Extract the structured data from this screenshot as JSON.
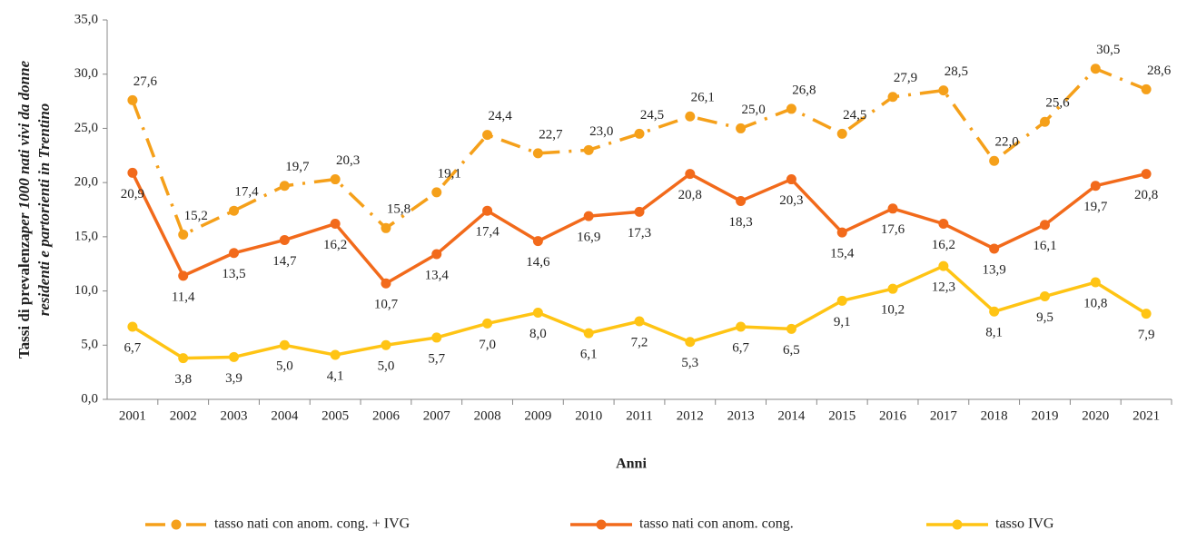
{
  "chart_data": {
    "type": "line",
    "ylabel": [
      "Tassi di prevalenza",
      "per 1000 nati vivi da donne",
      "residenti e partorienti in Trentino"
    ],
    "xlabel": "Anni",
    "categories": [
      "2001",
      "2002",
      "2003",
      "2004",
      "2005",
      "2006",
      "2007",
      "2008",
      "2009",
      "2010",
      "2011",
      "2012",
      "2013",
      "2014",
      "2015",
      "2016",
      "2017",
      "2018",
      "2019",
      "2020",
      "2021"
    ],
    "ylim": [
      0,
      35
    ],
    "yticks": [
      {
        "value": 0,
        "label": "0,0"
      },
      {
        "value": 5,
        "label": "5,0"
      },
      {
        "value": 10,
        "label": "10,0"
      },
      {
        "value": 15,
        "label": "15,0"
      },
      {
        "value": 20,
        "label": "20,0"
      },
      {
        "value": 25,
        "label": "25,0"
      },
      {
        "value": 30,
        "label": "30,0"
      },
      {
        "value": 35,
        "label": "35,0"
      }
    ],
    "legend": "bottom",
    "series": [
      {
        "name": "tasso nati con anom. cong. + IVG",
        "color": "#f5a01a",
        "linestyle": "dashdot",
        "markers": true,
        "label_position": "above",
        "values": [
          27.6,
          15.2,
          17.4,
          19.7,
          20.3,
          15.8,
          19.1,
          24.4,
          22.7,
          23.0,
          24.5,
          26.1,
          25.0,
          26.8,
          24.5,
          27.9,
          28.5,
          22.0,
          25.6,
          30.5,
          28.6
        ],
        "value_labels": [
          "27,6",
          "15,2",
          "17,4",
          "19,7",
          "20,3",
          "15,8",
          "19,1",
          "24,4",
          "22,7",
          "23,0",
          "24,5",
          "26,1",
          "25,0",
          "26,8",
          "24,5",
          "27,9",
          "28,5",
          "22,0",
          "25,6",
          "30,5",
          "28,6"
        ]
      },
      {
        "name": "tasso nati con anom. cong.",
        "color": "#f26a1b",
        "linestyle": "solid",
        "markers": true,
        "label_position": "below",
        "values": [
          20.9,
          11.4,
          13.5,
          14.7,
          16.2,
          10.7,
          13.4,
          17.4,
          14.6,
          16.9,
          17.3,
          20.8,
          18.3,
          20.3,
          15.4,
          17.6,
          16.2,
          13.9,
          16.1,
          19.7,
          20.8
        ],
        "value_labels": [
          "20,9",
          "11,4",
          "13,5",
          "14,7",
          "16,2",
          "10,7",
          "13,4",
          "17,4",
          "14,6",
          "16,9",
          "17,3",
          "20,8",
          "18,3",
          "20,3",
          "15,4",
          "17,6",
          "16,2",
          "13,9",
          "16,1",
          "19,7",
          "20,8"
        ]
      },
      {
        "name": "tasso IVG",
        "color": "#ffc414",
        "linestyle": "solid",
        "markers": true,
        "label_position": "below",
        "values": [
          6.7,
          3.8,
          3.9,
          5.0,
          4.1,
          5.0,
          5.7,
          7.0,
          8.0,
          6.1,
          7.2,
          5.3,
          6.7,
          6.5,
          9.1,
          10.2,
          12.3,
          8.1,
          9.5,
          10.8,
          7.9
        ],
        "value_labels": [
          "6,7",
          "3,8",
          "3,9",
          "5,0",
          "4,1",
          "5,0",
          "5,7",
          "7,0",
          "8,0",
          "6,1",
          "7,2",
          "5,3",
          "6,7",
          "6,5",
          "9,1",
          "10,2",
          "12,3",
          "8,1",
          "9,5",
          "10,8",
          "7,9"
        ]
      }
    ]
  }
}
